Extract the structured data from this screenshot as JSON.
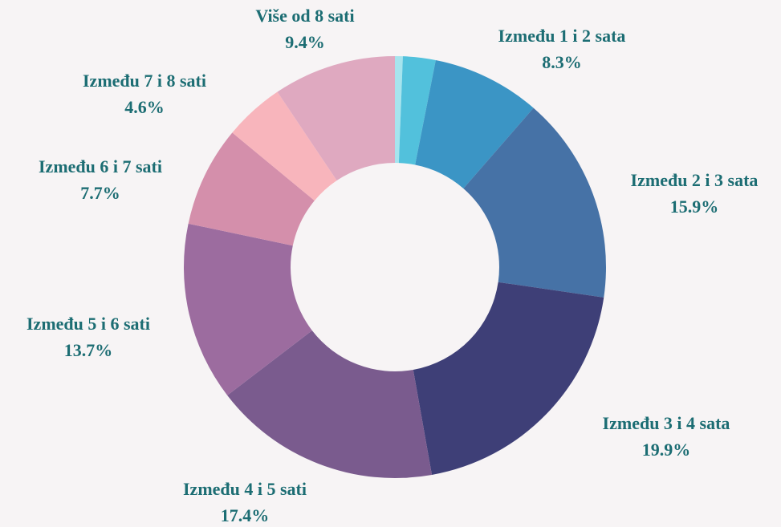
{
  "chart_data": {
    "type": "donut",
    "categories": [
      null,
      null,
      "Između 1 i 2 sata",
      "Između 2 i 3 sata",
      "Između 3 i 4 sata",
      "Između 4 i 5 sati",
      "Između 5 i 6 sati",
      "Između 6 i 7 sati",
      "Između 7 i 8 sati",
      "Više od 8 sati"
    ],
    "values": [
      0.6,
      2.5,
      8.3,
      15.9,
      19.9,
      17.4,
      13.7,
      7.7,
      4.6,
      9.4
    ],
    "value_labels": [
      null,
      null,
      "8.3%",
      "15.9%",
      "19.9%",
      "17.4%",
      "13.7%",
      "7.7%",
      "4.6%",
      "9.4%"
    ],
    "colors": [
      "#a6e4ee",
      "#52c1dc",
      "#3b95c5",
      "#4672a6",
      "#3e3f77",
      "#7a5b8e",
      "#9c6c9f",
      "#d48fab",
      "#f8b5bc",
      "#dfa9c0"
    ]
  }
}
